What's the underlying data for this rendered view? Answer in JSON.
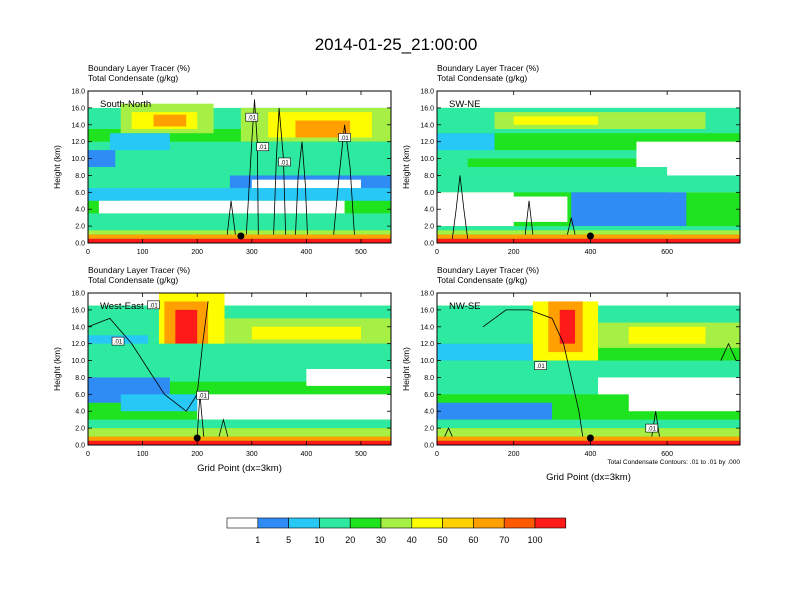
{
  "title": "2014-01-25_21:00:00",
  "colors": {
    "bins": [
      "#ffffff",
      "#2f8cf5",
      "#27c8f5",
      "#2eeaa0",
      "#1fe31f",
      "#a6f045",
      "#fefe00",
      "#fed000",
      "#ffa000",
      "#ff5a00",
      "#ff1a1a"
    ],
    "contour": "#000000",
    "marker": "#000000"
  },
  "chart_data": [
    {
      "type": "heatmap",
      "panel": "top-left",
      "label": "South-North",
      "title_lines": [
        "Boundary Layer Tracer   (%)",
        "Total Condensate   (g/kg)"
      ],
      "xlabel": "",
      "ylabel": "Height (km)",
      "xlim": [
        0,
        555
      ],
      "ylim": [
        0,
        18
      ],
      "xticks": [
        0,
        100,
        200,
        300,
        400,
        500
      ],
      "yticks": [
        "0.0",
        "2.0",
        "4.0",
        "6.0",
        "8.0",
        "10.0",
        "12.0",
        "14.0",
        "16.0",
        "18.0"
      ],
      "contour_labels": [
        ".01",
        ".01",
        ".01",
        ".01"
      ],
      "marker_x": 280
    },
    {
      "type": "heatmap",
      "panel": "top-right",
      "label": "SW-NE",
      "title_lines": [
        "Boundary Layer Tracer   (%)",
        "Total Condensate   (g/kg)"
      ],
      "xlabel": "",
      "ylabel": "Height (km)",
      "xlim": [
        0,
        790
      ],
      "ylim": [
        0,
        18
      ],
      "xticks": [
        0,
        200,
        400,
        600
      ],
      "yticks": [
        "0.0",
        "2.0",
        "4.0",
        "6.0",
        "8.0",
        "10.0",
        "12.0",
        "14.0",
        "16.0",
        "18.0"
      ],
      "contour_labels": [],
      "marker_x": 400
    },
    {
      "type": "heatmap",
      "panel": "bottom-left",
      "label": "West-East",
      "title_lines": [
        "Boundary Layer Tracer   (%)",
        "Total Condensate   (g/kg)"
      ],
      "xlabel": "Grid Point (dx=3km)",
      "ylabel": "Height (km)",
      "xlim": [
        0,
        555
      ],
      "ylim": [
        0,
        18
      ],
      "xticks": [
        0,
        100,
        200,
        300,
        400,
        500
      ],
      "yticks": [
        "0.0",
        "2.0",
        "4.0",
        "6.0",
        "8.0",
        "10.0",
        "12.0",
        "14.0",
        "16.0",
        "18.0"
      ],
      "contour_labels": [
        ".01",
        ".01",
        ".01"
      ],
      "marker_x": 200
    },
    {
      "type": "heatmap",
      "panel": "bottom-right",
      "label": "NW-SE",
      "title_lines": [
        "Boundary Layer Tracer   (%)",
        "Total Condensate   (g/kg)"
      ],
      "xlabel": "Grid Point (dx=3km)",
      "ylabel": "Height (km)",
      "xlim": [
        0,
        790
      ],
      "ylim": [
        0,
        18
      ],
      "xticks": [
        0,
        200,
        400,
        600
      ],
      "yticks": [
        "0.0",
        "2.0",
        "4.0",
        "6.0",
        "8.0",
        "10.0",
        "12.0",
        "14.0",
        "16.0",
        "18.0"
      ],
      "contour_labels": [
        ".01",
        ".01"
      ],
      "marker_x": 400,
      "note": "Total Condensate Contours: .01 to .01 by .000"
    }
  ],
  "colorbar": {
    "labels": [
      "1",
      "5",
      "10",
      "20",
      "30",
      "40",
      "50",
      "60",
      "70",
      "100"
    ]
  }
}
